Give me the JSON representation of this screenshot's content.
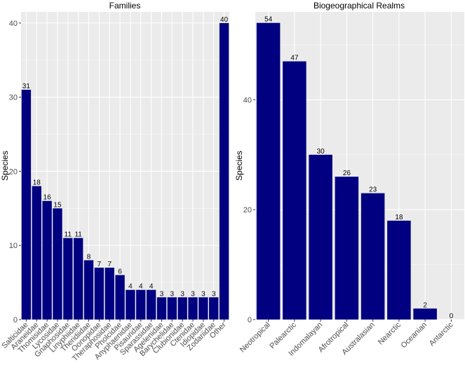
{
  "chart_data": [
    {
      "type": "bar",
      "title": "Families",
      "xlabel": "",
      "ylabel": "Species",
      "ylim": [
        0,
        41.5
      ],
      "yticks": [
        0,
        10,
        20,
        30,
        40
      ],
      "grid": true,
      "bar_color": "#000080",
      "panel_color": "#ebebeb",
      "categories": [
        "Salticidae",
        "Araneidae",
        "Thomisidae",
        "Lycosidae",
        "Gnaphosidae",
        "Linyphiidae",
        "Theridiidae",
        "Oonopidae",
        "Theraphosidae",
        "Pholcidae",
        "Anyphaenidae",
        "Pisauridae",
        "Sparassidae",
        "Agelenidae",
        "Barychelidae",
        "Clubionidae",
        "Ctenidae",
        "Idiopidae",
        "Zodariidae",
        "Other"
      ],
      "values": [
        31,
        18,
        16,
        15,
        11,
        11,
        8,
        7,
        7,
        6,
        4,
        4,
        4,
        3,
        3,
        3,
        3,
        3,
        3,
        40
      ]
    },
    {
      "type": "bar",
      "title": "Biogeographical Realms",
      "xlabel": "",
      "ylabel": "Species",
      "ylim": [
        0,
        56
      ],
      "yticks": [
        0,
        20,
        40
      ],
      "grid": true,
      "bar_color": "#000080",
      "panel_color": "#ebebeb",
      "categories": [
        "Neotropical",
        "Palearctic",
        "Indomalayan",
        "Afrotropical",
        "Australasian",
        "Nearctic",
        "Oceanian",
        "Antarctic"
      ],
      "values": [
        54,
        47,
        30,
        26,
        23,
        18,
        2,
        0
      ]
    }
  ]
}
